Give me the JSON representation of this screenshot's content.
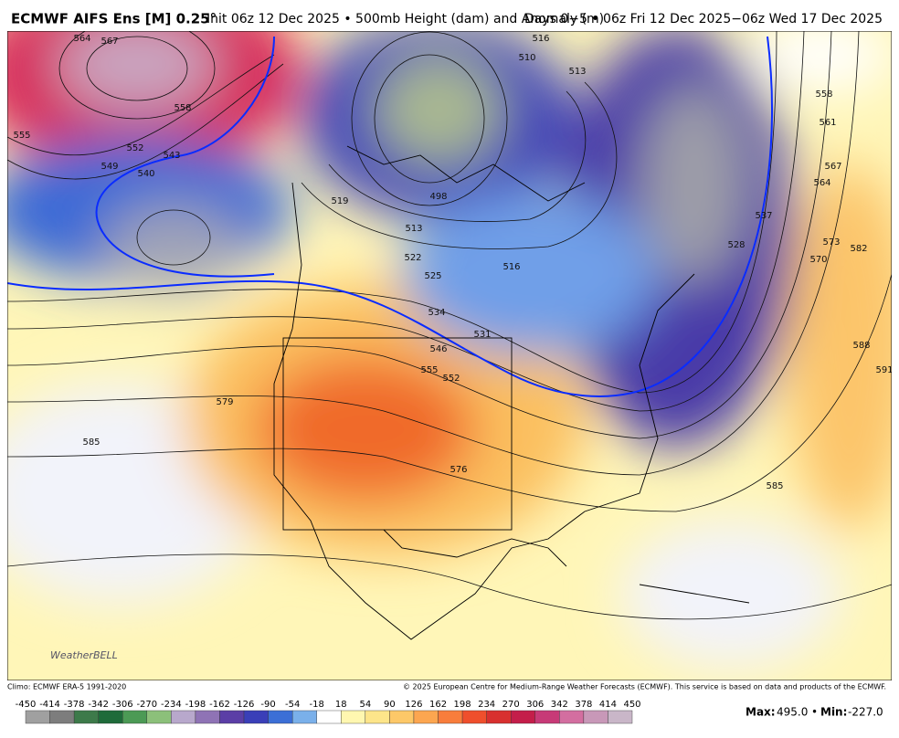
{
  "header": {
    "title": "ECMWF AIFS Ens [M] 0.25°",
    "init": "Init 06z 12 Dec 2025 • 500mb Height (dam) and Anomaly (m)",
    "days": "Days 0−5 • 06z Fri 12 Dec 2025−06z Wed 17 Dec 2025"
  },
  "map": {
    "contour_labels": [
      "564",
      "567",
      "555",
      "552",
      "549",
      "540",
      "543",
      "558",
      "519",
      "513",
      "498",
      "516",
      "522",
      "525",
      "534",
      "531",
      "546",
      "555",
      "552",
      "579",
      "585",
      "576",
      "585",
      "588",
      "591",
      "582",
      "573",
      "570",
      "567",
      "564",
      "561",
      "558",
      "537",
      "528",
      "513",
      "516",
      "510"
    ],
    "logo": "WeatherBELL"
  },
  "footer": {
    "climo": "Climo: ECMWF ERA-5 1991-2020",
    "copyright": "© 2025 European Centre for Medium-Range Weather Forecasts (ECMWF). This service is based on data and products of the ECMWF.",
    "max_label": "Max:",
    "max_value": "495.0",
    "separator": "•",
    "min_label": "Min:",
    "min_value": "-227.0"
  },
  "colorbar": {
    "ticks": [
      -450,
      -414,
      -378,
      -342,
      -306,
      -270,
      -234,
      -198,
      -162,
      -126,
      -90,
      -54,
      -18,
      18,
      54,
      90,
      126,
      162,
      198,
      234,
      270,
      306,
      342,
      378,
      414,
      450
    ],
    "colors": [
      "#a0a0a0",
      "#7d7d7d",
      "#3d7a4a",
      "#1f6b3a",
      "#4c9a55",
      "#8cc07a",
      "#b8a8cc",
      "#8f73b5",
      "#5b3ea6",
      "#3a3fb8",
      "#3c6fd6",
      "#7ab0ea",
      "#ffffff",
      "#fff7b0",
      "#fde58a",
      "#fdc868",
      "#fca650",
      "#f87d3c",
      "#ef4f2c",
      "#d8302f",
      "#c41e4a",
      "#c73a77",
      "#d36ea0",
      "#c898b8",
      "#c9b6c8"
    ]
  }
}
